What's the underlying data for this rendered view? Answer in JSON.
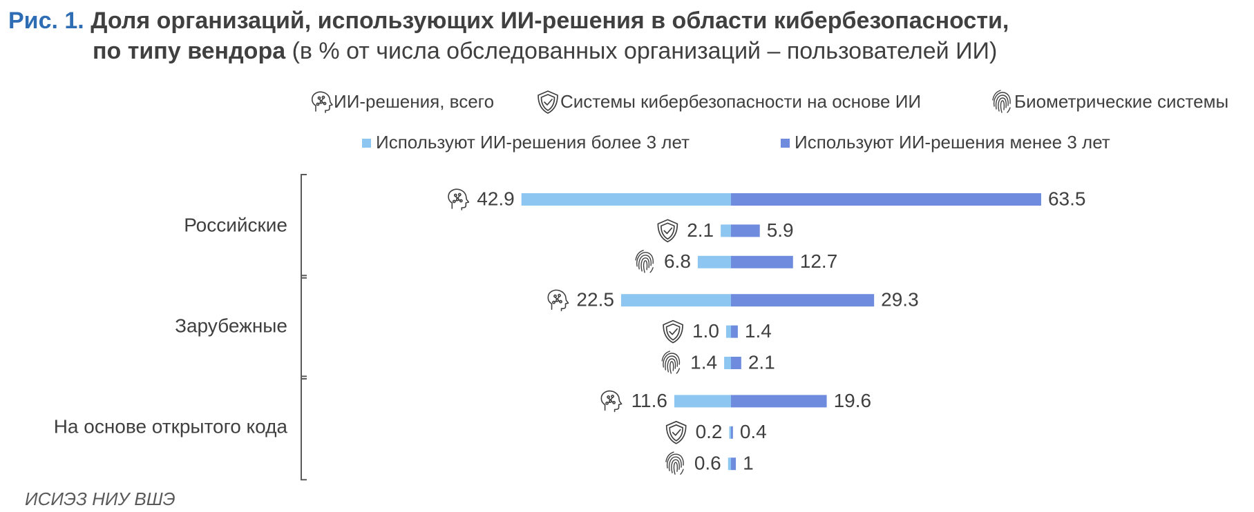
{
  "title": {
    "fig_label": "Рис. 1.",
    "bold_line1": "Доля организаций, использующих ИИ-решения в области кибербезопасности,",
    "bold_line2": "по типу вендора",
    "normal_line2": "(в % от числа обследованных организаций – пользователей ИИ)"
  },
  "source": "ИСИЭЗ НИУ ВШЭ",
  "colors": {
    "more3": "#8ec6f2",
    "less3": "#6e8bdd",
    "fig_label": "#2e6db4",
    "text": "#3f3f3f"
  },
  "chart_data": {
    "type": "bar",
    "orientation": "horizontal-diverging",
    "icon_legend": [
      {
        "label": "ИИ-решения, всего",
        "icon": "ai-head-icon"
      },
      {
        "label": "Системы кибербезопасности на основе ИИ",
        "icon": "shield-check-icon"
      },
      {
        "label": "Биометрические системы",
        "icon": "fingerprint-icon"
      }
    ],
    "series": [
      {
        "name": "Используют ИИ-решения более 3 лет",
        "color": "#8ec6f2",
        "side": "left"
      },
      {
        "name": "Используют ИИ-решения менее 3 лет",
        "color": "#6e8bdd",
        "side": "right"
      }
    ],
    "groups": [
      {
        "label": "Российские",
        "rows": [
          {
            "icon": "ai-head-icon",
            "more3": 42.9,
            "more3_label": "42.9",
            "less3": 63.5,
            "less3_label": "63.5"
          },
          {
            "icon": "shield-check-icon",
            "more3": 2.1,
            "more3_label": "2.1",
            "less3": 5.9,
            "less3_label": "5.9"
          },
          {
            "icon": "fingerprint-icon",
            "more3": 6.8,
            "more3_label": "6.8",
            "less3": 12.7,
            "less3_label": "12.7"
          }
        ]
      },
      {
        "label": "Зарубежные",
        "rows": [
          {
            "icon": "ai-head-icon",
            "more3": 22.5,
            "more3_label": "22.5",
            "less3": 29.3,
            "less3_label": "29.3"
          },
          {
            "icon": "shield-check-icon",
            "more3": 1.0,
            "more3_label": "1.0",
            "less3": 1.4,
            "less3_label": "1.4"
          },
          {
            "icon": "fingerprint-icon",
            "more3": 1.4,
            "more3_label": "1.4",
            "less3": 2.1,
            "less3_label": "2.1"
          }
        ]
      },
      {
        "label": "На основе открытого кода",
        "rows": [
          {
            "icon": "ai-head-icon",
            "more3": 11.6,
            "more3_label": "11.6",
            "less3": 19.6,
            "less3_label": "19.6"
          },
          {
            "icon": "shield-check-icon",
            "more3": 0.2,
            "more3_label": "0.2",
            "less3": 0.4,
            "less3_label": "0.4"
          },
          {
            "icon": "fingerprint-icon",
            "more3": 0.6,
            "more3_label": "0.6",
            "less3": 1,
            "less3_label": "1"
          }
        ]
      }
    ],
    "grid": false,
    "legend_position": "top"
  }
}
